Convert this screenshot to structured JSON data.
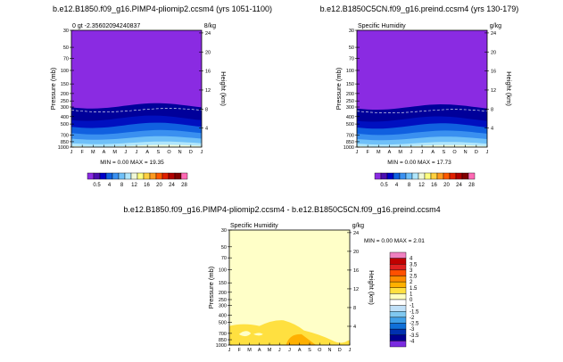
{
  "figure": {
    "panels": [
      {
        "title": "b.e12.B1850.f09_g16.PIMP4-pliomip2.ccsm4  (yrs 1051-1100)",
        "subtitle_left": "0  gt  -2.35602094240837  ",
        "subtitle_right": "8/kg",
        "minmax": "MIN =   0.00 MAX =  19.35"
      },
      {
        "title": "b.e12.B1850C5CN.f09_g16.preind.ccsm4  (yrs 130-179)",
        "subtitle_left": "Specific Humidity",
        "subtitle_right": "g/kg",
        "minmax": "MIN =   0.00 MAX =  17.73"
      },
      {
        "title": "b.e12.B1850.f09_g16.PIMP4-pliomip2.ccsm4  -  b.e12.B1850C5CN.f09_g16.preind.ccsm4",
        "subtitle_left": "Specific Humidity",
        "subtitle_right": "g/kg",
        "minmax": "MIN =    0.00 MAX =   2.01"
      }
    ]
  },
  "chart_data": [
    {
      "type": "heatmap",
      "variable": "Specific Humidity",
      "units": "g/kg",
      "xlabel": "",
      "ylabel": "Pressure (mb)",
      "ylabel_right": "Height (km)",
      "x": [
        "J",
        "F",
        "M",
        "A",
        "M",
        "J",
        "J",
        "A",
        "S",
        "O",
        "N",
        "D",
        "J"
      ],
      "yticks": [
        30,
        50,
        70,
        100,
        150,
        200,
        250,
        300,
        400,
        500,
        700,
        850,
        1000
      ],
      "height_ticks": [
        4,
        8,
        12,
        16,
        20,
        24
      ],
      "levels": [
        0.5,
        4,
        8,
        12,
        16,
        20,
        24,
        28
      ],
      "colorbar_labels": [
        "0.5",
        "4",
        "8",
        "12",
        "16",
        "20",
        "24",
        "28"
      ],
      "colors": [
        "#8a2be2",
        "#4b0eb0",
        "#0000c8",
        "#1060e0",
        "#3a90f0",
        "#70c0f8",
        "#b0e6fc",
        "#f0f8d8",
        "#ffff80",
        "#ffd040",
        "#ff9a20",
        "#ff5a00",
        "#e02000",
        "#b00000",
        "#800000",
        "#ff69b4"
      ],
      "field_color": "#8a2be2",
      "min": 0.0,
      "max": 19.35
    },
    {
      "type": "heatmap",
      "variable": "Specific Humidity",
      "units": "g/kg",
      "xlabel": "",
      "ylabel": "Pressure (mb)",
      "ylabel_right": "Height (km)",
      "x": [
        "J",
        "F",
        "M",
        "A",
        "M",
        "J",
        "J",
        "A",
        "S",
        "O",
        "N",
        "D",
        "J"
      ],
      "yticks": [
        30,
        50,
        70,
        100,
        150,
        200,
        250,
        300,
        400,
        500,
        700,
        850,
        1000
      ],
      "height_ticks": [
        4,
        8,
        12,
        16,
        20,
        24
      ],
      "levels": [
        0.5,
        4,
        8,
        12,
        16,
        20,
        24,
        28
      ],
      "colorbar_labels": [
        "0.5",
        "4",
        "8",
        "12",
        "16",
        "20",
        "24",
        "28"
      ],
      "colors": [
        "#8a2be2",
        "#4b0eb0",
        "#0000c8",
        "#1060e0",
        "#3a90f0",
        "#70c0f8",
        "#b0e6fc",
        "#f0f8d8",
        "#ffff80",
        "#ffd040",
        "#ff9a20",
        "#ff5a00",
        "#e02000",
        "#b00000",
        "#800000",
        "#ff69b4"
      ],
      "field_color": "#8a2be2",
      "min": 0.0,
      "max": 17.73
    },
    {
      "type": "heatmap",
      "variable": "Specific Humidity (difference)",
      "units": "g/kg",
      "xlabel": "",
      "ylabel": "Pressure (mb)",
      "ylabel_right": "Height (km)",
      "x": [
        "J",
        "F",
        "M",
        "A",
        "M",
        "J",
        "J",
        "A",
        "S",
        "O",
        "N",
        "D",
        "J"
      ],
      "yticks": [
        30,
        50,
        70,
        100,
        150,
        200,
        250,
        300,
        400,
        500,
        700,
        850,
        1000
      ],
      "height_ticks": [
        4,
        8,
        12,
        16,
        20,
        24
      ],
      "levels": [
        -4,
        -3.5,
        -3,
        -2.5,
        -2,
        -1.5,
        -1,
        0,
        1,
        1.5,
        2,
        2.5,
        3,
        3.5,
        4
      ],
      "colorbar_labels": [
        "4",
        "3.5",
        "3",
        "2.5",
        "2",
        "1.5",
        "1",
        "0",
        "-1",
        "-1.5",
        "-2",
        "-2.5",
        "-3",
        "-3.5",
        "-4"
      ],
      "colors_top_to_bottom": [
        "#f080c0",
        "#c00000",
        "#e02020",
        "#ff5000",
        "#ff8c00",
        "#ffb000",
        "#ffe040",
        "#ffffc0",
        "#ffffff",
        "#c0e0f8",
        "#80c8f0",
        "#40a0e8",
        "#1070d8",
        "#0030b0",
        "#000090",
        "#7a2be0"
      ],
      "field_color": "#ffffc8",
      "min": 0.0,
      "max": 2.01
    }
  ]
}
